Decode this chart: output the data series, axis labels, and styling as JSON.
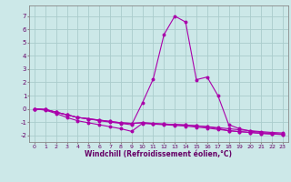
{
  "xlabel": "Windchill (Refroidissement éolien,°C)",
  "bg_color": "#cce8e8",
  "grid_color": "#aacccc",
  "line_color": "#aa00aa",
  "xlim": [
    -0.5,
    23.5
  ],
  "ylim": [
    -2.5,
    7.8
  ],
  "yticks": [
    -2,
    -1,
    0,
    1,
    2,
    3,
    4,
    5,
    6,
    7
  ],
  "xticks": [
    0,
    1,
    2,
    3,
    4,
    5,
    6,
    7,
    8,
    9,
    10,
    11,
    12,
    13,
    14,
    15,
    16,
    17,
    18,
    19,
    20,
    21,
    22,
    23
  ],
  "curves": [
    [
      0,
      -0.05,
      -0.25,
      -0.45,
      -0.65,
      -0.75,
      -0.85,
      -0.95,
      -1.05,
      -1.1,
      -1.05,
      -1.1,
      -1.15,
      -1.18,
      -1.22,
      -1.28,
      -1.35,
      -1.42,
      -1.5,
      -1.58,
      -1.65,
      -1.72,
      -1.78,
      -1.82
    ],
    [
      0,
      -0.1,
      -0.35,
      -0.65,
      -0.9,
      -1.05,
      -1.2,
      -1.35,
      -1.5,
      -1.7,
      -1.1,
      -1.15,
      -1.2,
      -1.25,
      -1.3,
      -1.38,
      -1.45,
      -1.55,
      -1.65,
      -1.72,
      -1.78,
      -1.85,
      -1.9,
      -1.93
    ],
    [
      0,
      -0.05,
      -0.25,
      -0.45,
      -0.65,
      -0.75,
      -0.9,
      -1.0,
      -1.1,
      -1.2,
      0.45,
      2.25,
      5.6,
      7.0,
      6.55,
      2.2,
      2.4,
      1.0,
      -1.2,
      -1.5,
      -1.68,
      -1.78,
      -1.85,
      -1.9
    ],
    [
      0,
      -0.05,
      -0.25,
      -0.45,
      -0.65,
      -0.75,
      -0.85,
      -0.95,
      -1.05,
      -1.1,
      -1.05,
      -1.1,
      -1.15,
      -1.18,
      -1.22,
      -1.28,
      -1.35,
      -1.48,
      -1.65,
      -1.72,
      -1.78,
      -1.85,
      -1.9,
      -1.93
    ]
  ]
}
